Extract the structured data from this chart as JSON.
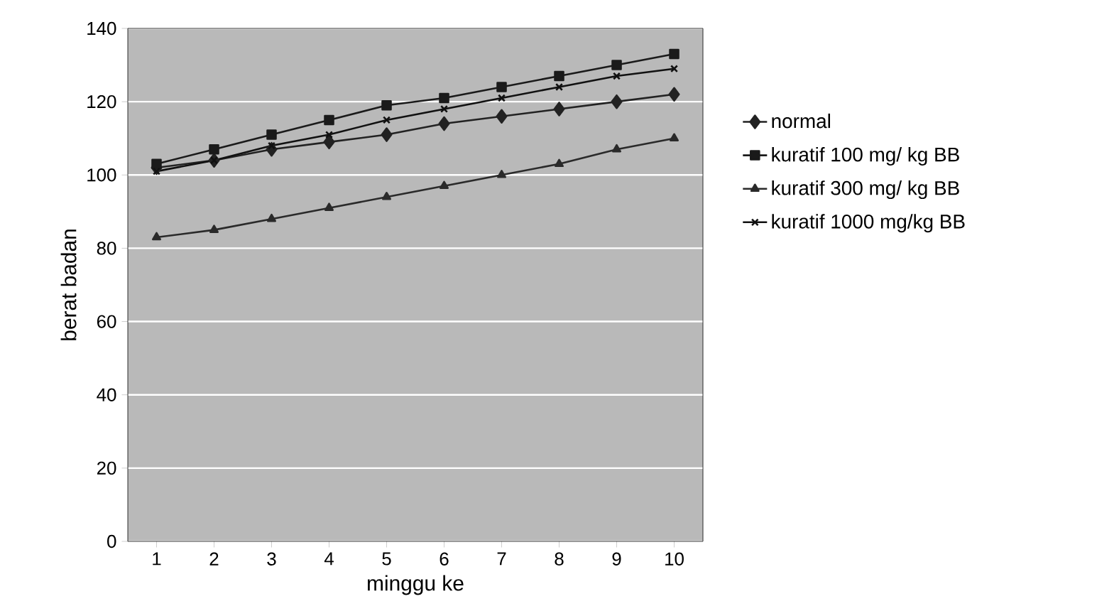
{
  "chart_data": {
    "type": "line",
    "xlabel": "minggu ke",
    "ylabel": "berat badan",
    "categories": [
      "1",
      "2",
      "3",
      "4",
      "5",
      "6",
      "7",
      "8",
      "9",
      "10"
    ],
    "series": [
      {
        "name": "normal",
        "color": "#222222",
        "marker": "diamond",
        "values": [
          102,
          104,
          107,
          109,
          111,
          114,
          116,
          118,
          120,
          122
        ]
      },
      {
        "name": "kuratif 100 mg/ kg BB",
        "color": "#1a1a1a",
        "marker": "square",
        "values": [
          103,
          107,
          111,
          115,
          119,
          121,
          124,
          127,
          130,
          133
        ]
      },
      {
        "name": "kuratif 300 mg/ kg BB",
        "color": "#2a2a2a",
        "marker": "triangle",
        "values": [
          83,
          85,
          88,
          91,
          94,
          97,
          100,
          103,
          107,
          110
        ]
      },
      {
        "name": "kuratif 1000 mg/kg BB",
        "color": "#111111",
        "marker": "cross",
        "values": [
          101,
          104,
          108,
          111,
          115,
          118,
          121,
          124,
          127,
          129
        ]
      }
    ],
    "ylim": [
      0,
      140
    ],
    "yticks": [
      0,
      20,
      40,
      60,
      80,
      100,
      120,
      140
    ],
    "grid": "y",
    "legend": "right"
  }
}
